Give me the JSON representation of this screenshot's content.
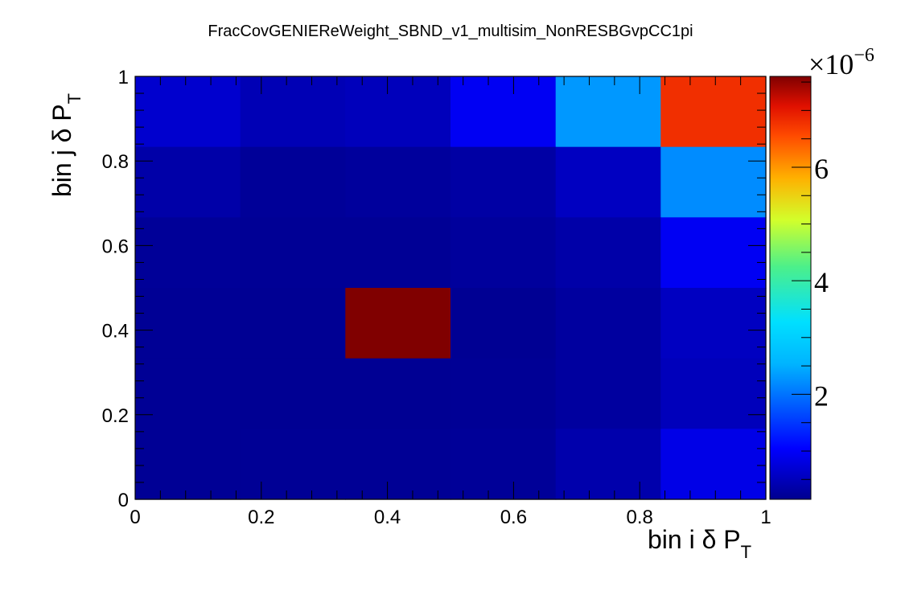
{
  "chart_data": {
    "type": "heatmap",
    "title": "FracCovGENIEReWeight_SBND_v1_multisim_NonRESBGvpCC1pi",
    "xlabel": {
      "main": "bin i δ P",
      "sub": "T"
    },
    "ylabel": {
      "main": "bin j δ P",
      "sub": "T"
    },
    "xlim": [
      0,
      1
    ],
    "ylim": [
      0,
      1
    ],
    "x_ticks": [
      0,
      0.2,
      0.4,
      0.6,
      0.8,
      1
    ],
    "x_tick_labels": [
      "0",
      "0.2",
      "0.4",
      "0.6",
      "0.8",
      "1"
    ],
    "y_ticks": [
      0,
      0.2,
      0.4,
      0.6,
      0.8,
      1
    ],
    "y_tick_labels": [
      "0",
      "0.2",
      "0.4",
      "0.6",
      "0.8",
      "1"
    ],
    "x_bin_edges": [
      0,
      0.1667,
      0.3333,
      0.5,
      0.6667,
      0.8333,
      1
    ],
    "y_bin_edges": [
      0,
      0.1667,
      0.3333,
      0.5,
      0.6667,
      0.8333,
      1
    ],
    "z_rows_top_to_bottom": [
      [
        0.65,
        0.45,
        0.5,
        0.95,
        2.3,
        6.8
      ],
      [
        0.35,
        0.22,
        0.25,
        0.32,
        0.55,
        2.2
      ],
      [
        0.22,
        0.2,
        0.2,
        0.25,
        0.35,
        0.95
      ],
      [
        0.2,
        0.18,
        7.6,
        0.18,
        0.28,
        0.55
      ],
      [
        0.2,
        0.18,
        0.18,
        0.2,
        0.28,
        0.5
      ],
      [
        0.2,
        0.2,
        0.2,
        0.22,
        0.38,
        0.85
      ]
    ],
    "z_range": [
      0.15,
      7.6
    ],
    "colorbar": {
      "ticks": [
        2,
        4,
        6
      ],
      "tick_labels": [
        "2",
        "4",
        "6"
      ],
      "exponent_base": "×10",
      "exponent_power": "−6"
    },
    "grid": false,
    "colormap": "rainbow"
  }
}
